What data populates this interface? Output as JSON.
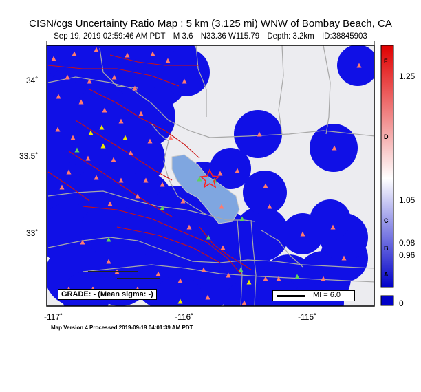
{
  "title": "CISN/cgs Uncertainty Ratio Map : 5 km (3.125 mi) WNW of Bombay Beach, CA",
  "subtitle": {
    "datetime": "Sep 19, 2019 02:59:46 AM PDT",
    "magnitude": "M 3.6",
    "location": "N33.36 W115.79",
    "depth": "Depth: 3.2km",
    "id": "ID:38845903"
  },
  "axes": {
    "lat_labels": [
      "34˚",
      "33.5˚",
      "33˚"
    ],
    "lon_labels": [
      "-117˚",
      "-116˚",
      "-115˚"
    ]
  },
  "grade_box": "GRADE: - (Mean sigma: -)",
  "legend": {
    "mi_label": "MI = 6.0"
  },
  "colorbar": {
    "grades": [
      "F",
      "D",
      "C",
      "B",
      "A"
    ],
    "values": [
      "1.25",
      "1.05",
      "0.98",
      "0.96",
      "0"
    ]
  },
  "footer": "Map Version 4 Processed 2019-09-19 04:01:39 AM PDT",
  "colors": {
    "background": "#ececf0",
    "coverage": "#1010e6",
    "lake": "#7fa6e0",
    "faults": "#cc1010",
    "roads": "#a8a8a8",
    "station_red": "#ff7a6e",
    "station_yellow": "#f0e800",
    "station_green": "#5fd060",
    "epicenter": "#ff2020"
  }
}
